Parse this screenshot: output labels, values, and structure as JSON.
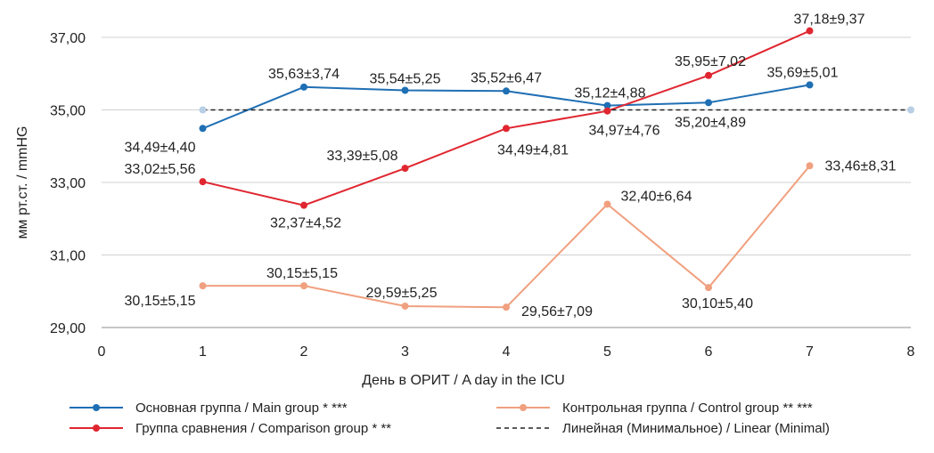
{
  "chart_data": {
    "type": "line",
    "xlabel": "День в ОРИТ / A day in the ICU",
    "ylabel": "мм рт.ст. / mmHG",
    "xlim": [
      0,
      8
    ],
    "ylim": [
      29,
      38
    ],
    "x_ticks": [
      "0",
      "1",
      "2",
      "3",
      "4",
      "5",
      "6",
      "7",
      "8"
    ],
    "y_ticks": [
      "29,00",
      "31,00",
      "33,00",
      "35,00",
      "37,00"
    ],
    "y_tick_values": [
      29,
      31,
      33,
      35,
      37
    ],
    "grid": "horizontal",
    "legend_position": "bottom",
    "series": [
      {
        "name": "Основная группа / Main group * ***",
        "color": "#1f6fb4",
        "style": "solid",
        "x": [
          1,
          2,
          3,
          4,
          5,
          6,
          7
        ],
        "values": [
          34.49,
          35.63,
          35.54,
          35.52,
          35.12,
          35.2,
          35.69
        ],
        "labels": [
          "34,49±4,40",
          "35,63±3,74",
          "35,54±5,25",
          "35,52±6,47",
          "35,12±4,88",
          "35,20±4,89",
          "35,69±5,01"
        ]
      },
      {
        "name": "Группа сравнения / Comparison group * **",
        "color": "#e02630",
        "style": "solid",
        "x": [
          1,
          2,
          3,
          4,
          5,
          6,
          7
        ],
        "values": [
          33.02,
          32.37,
          33.39,
          34.49,
          34.97,
          35.95,
          37.18
        ],
        "labels": [
          "33,02±5,56",
          "32,37±4,52",
          "33,39±5,08",
          "34,49±4,81",
          "34,97±4,76",
          "35,95±7,02",
          "37,18±9,37"
        ]
      },
      {
        "name": "Контрольная группа / Control group ** ***",
        "color": "#f0a07f",
        "style": "solid",
        "x": [
          1,
          2,
          3,
          4,
          5,
          6,
          7
        ],
        "values": [
          30.15,
          30.15,
          29.59,
          29.56,
          32.4,
          30.1,
          33.46
        ],
        "labels": [
          "30,15±5,15",
          "30,15±5,15",
          "29,59±5,25",
          "29,56±7,09",
          "32,40±6,64",
          "30,10±5,40",
          "33,46±8,31"
        ]
      },
      {
        "name": "Линейная (Минимальное) / Linear (Minimal)",
        "color": "#222222",
        "style": "dashed",
        "x": [
          1,
          8
        ],
        "values": [
          35,
          35
        ],
        "end_marker_color": "#b8cfe6"
      }
    ]
  }
}
